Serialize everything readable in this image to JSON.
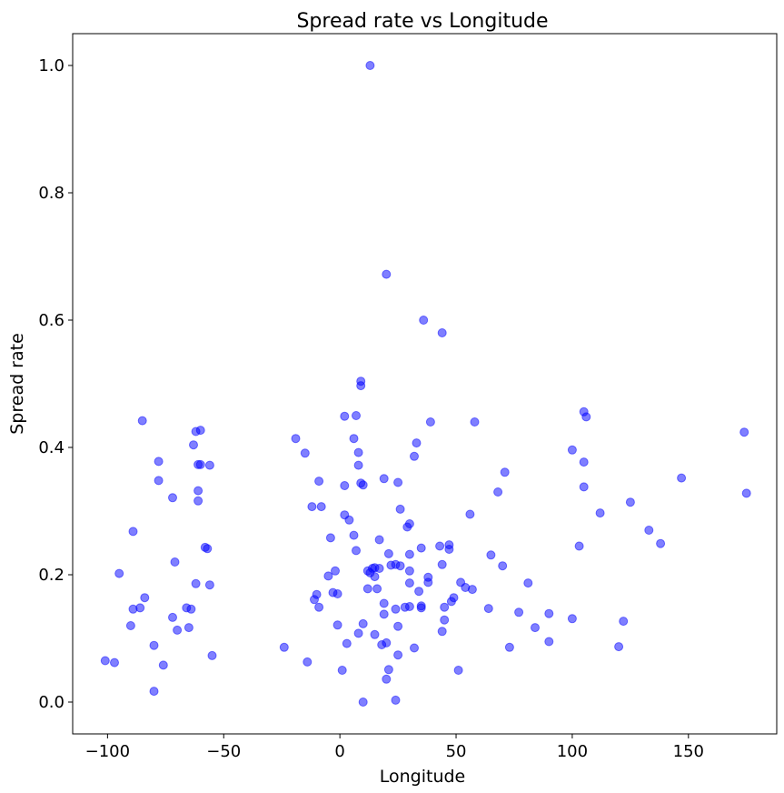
{
  "chart_data": {
    "type": "scatter",
    "title": "Spread rate vs Longitude",
    "xlabel": "Longitude",
    "ylabel": "Spread rate",
    "xlim": [
      -115,
      188
    ],
    "ylim": [
      -0.05,
      1.05
    ],
    "xticks": [
      -100,
      -50,
      0,
      50,
      100,
      150
    ],
    "yticks": [
      0.0,
      0.2,
      0.4,
      0.6,
      0.8,
      1.0
    ],
    "xtick_labels": [
      "−100",
      "−50",
      "0",
      "50",
      "100",
      "150"
    ],
    "ytick_labels": [
      "0.0",
      "0.2",
      "0.4",
      "0.6",
      "0.8",
      "1.0"
    ],
    "grid": false,
    "point_color": "#0000ff",
    "point_alpha": 0.5,
    "points": [
      [
        13,
        1.0
      ],
      [
        20,
        0.672
      ],
      [
        36,
        0.6
      ],
      [
        44,
        0.58
      ],
      [
        9,
        0.504
      ],
      [
        9,
        0.497
      ],
      [
        -85,
        0.442
      ],
      [
        7,
        0.45
      ],
      [
        2,
        0.449
      ],
      [
        39,
        0.44
      ],
      [
        58,
        0.44
      ],
      [
        105,
        0.456
      ],
      [
        106,
        0.448
      ],
      [
        -62,
        0.425
      ],
      [
        -60,
        0.427
      ],
      [
        -19,
        0.414
      ],
      [
        6,
        0.414
      ],
      [
        33,
        0.407
      ],
      [
        174,
        0.424
      ],
      [
        -63,
        0.404
      ],
      [
        -15,
        0.391
      ],
      [
        8,
        0.392
      ],
      [
        32,
        0.386
      ],
      [
        100,
        0.396
      ],
      [
        -78,
        0.378
      ],
      [
        -61,
        0.373
      ],
      [
        -60,
        0.373
      ],
      [
        -56,
        0.372
      ],
      [
        8,
        0.372
      ],
      [
        105,
        0.377
      ],
      [
        -78,
        0.348
      ],
      [
        -9,
        0.347
      ],
      [
        9,
        0.344
      ],
      [
        10,
        0.341
      ],
      [
        19,
        0.351
      ],
      [
        25,
        0.345
      ],
      [
        71,
        0.361
      ],
      [
        147,
        0.352
      ],
      [
        -72,
        0.321
      ],
      [
        -61,
        0.332
      ],
      [
        -61,
        0.316
      ],
      [
        2,
        0.34
      ],
      [
        68,
        0.33
      ],
      [
        105,
        0.338
      ],
      [
        175,
        0.328
      ],
      [
        -12,
        0.307
      ],
      [
        -8,
        0.307
      ],
      [
        26,
        0.303
      ],
      [
        125,
        0.314
      ],
      [
        112,
        0.297
      ],
      [
        2,
        0.294
      ],
      [
        4,
        0.286
      ],
      [
        29,
        0.275
      ],
      [
        30,
        0.28
      ],
      [
        56,
        0.295
      ],
      [
        133,
        0.27
      ],
      [
        -89,
        0.268
      ],
      [
        -4,
        0.258
      ],
      [
        6,
        0.262
      ],
      [
        17,
        0.255
      ],
      [
        103,
        0.245
      ],
      [
        138,
        0.249
      ],
      [
        -58,
        0.243
      ],
      [
        -57,
        0.241
      ],
      [
        7,
        0.238
      ],
      [
        21,
        0.233
      ],
      [
        30,
        0.232
      ],
      [
        35,
        0.242
      ],
      [
        43,
        0.245
      ],
      [
        47,
        0.247
      ],
      [
        47,
        0.24
      ],
      [
        65,
        0.231
      ],
      [
        -71,
        0.22
      ],
      [
        12,
        0.206
      ],
      [
        13,
        0.203
      ],
      [
        14,
        0.21
      ],
      [
        15,
        0.211
      ],
      [
        17,
        0.21
      ],
      [
        22,
        0.215
      ],
      [
        24,
        0.216
      ],
      [
        26,
        0.214
      ],
      [
        30,
        0.206
      ],
      [
        44,
        0.216
      ],
      [
        70,
        0.214
      ],
      [
        -95,
        0.202
      ],
      [
        -5,
        0.198
      ],
      [
        -2,
        0.206
      ],
      [
        15,
        0.197
      ],
      [
        38,
        0.196
      ],
      [
        38,
        0.188
      ],
      [
        52,
        0.188
      ],
      [
        54,
        0.18
      ],
      [
        57,
        0.177
      ],
      [
        81,
        0.187
      ],
      [
        -62,
        0.186
      ],
      [
        -56,
        0.184
      ],
      [
        -3,
        0.172
      ],
      [
        -1,
        0.17
      ],
      [
        -10,
        0.169
      ],
      [
        -11,
        0.161
      ],
      [
        12,
        0.178
      ],
      [
        16,
        0.178
      ],
      [
        30,
        0.187
      ],
      [
        34,
        0.174
      ],
      [
        49,
        0.164
      ],
      [
        -84,
        0.164
      ],
      [
        -86,
        0.148
      ],
      [
        -89,
        0.146
      ],
      [
        -66,
        0.148
      ],
      [
        -64,
        0.146
      ],
      [
        -9,
        0.149
      ],
      [
        19,
        0.155
      ],
      [
        24,
        0.146
      ],
      [
        28,
        0.149
      ],
      [
        30,
        0.15
      ],
      [
        35,
        0.151
      ],
      [
        35,
        0.148
      ],
      [
        45,
        0.149
      ],
      [
        48,
        0.158
      ],
      [
        64,
        0.147
      ],
      [
        77,
        0.141
      ],
      [
        90,
        0.139
      ],
      [
        -72,
        0.133
      ],
      [
        -90,
        0.12
      ],
      [
        -70,
        0.113
      ],
      [
        -65,
        0.117
      ],
      [
        -1,
        0.121
      ],
      [
        10,
        0.123
      ],
      [
        19,
        0.138
      ],
      [
        25,
        0.119
      ],
      [
        44,
        0.111
      ],
      [
        45,
        0.129
      ],
      [
        84,
        0.117
      ],
      [
        100,
        0.131
      ],
      [
        122,
        0.127
      ],
      [
        -80,
        0.089
      ],
      [
        -24,
        0.086
      ],
      [
        3,
        0.092
      ],
      [
        8,
        0.108
      ],
      [
        15,
        0.106
      ],
      [
        18,
        0.09
      ],
      [
        20,
        0.093
      ],
      [
        32,
        0.085
      ],
      [
        73,
        0.086
      ],
      [
        90,
        0.095
      ],
      [
        120,
        0.087
      ],
      [
        -101,
        0.065
      ],
      [
        -97,
        0.062
      ],
      [
        -76,
        0.058
      ],
      [
        -55,
        0.073
      ],
      [
        -14,
        0.063
      ],
      [
        25,
        0.074
      ],
      [
        1,
        0.05
      ],
      [
        21,
        0.051
      ],
      [
        51,
        0.05
      ],
      [
        20,
        0.036
      ],
      [
        -80,
        0.017
      ],
      [
        10,
        0.0
      ],
      [
        24,
        0.003
      ]
    ]
  }
}
